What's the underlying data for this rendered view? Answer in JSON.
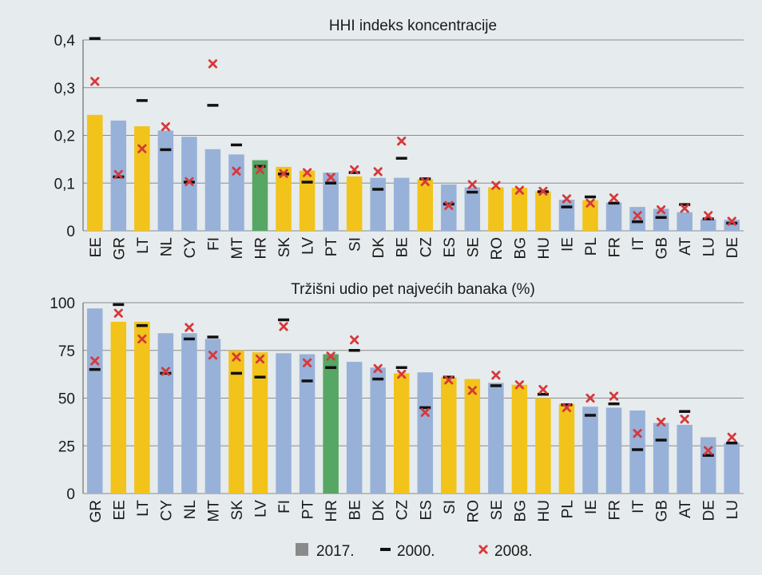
{
  "colors": {
    "background": "#e6ebed",
    "bar_blue": "#98b1d8",
    "bar_yellow": "#f2c31a",
    "bar_green": "#56a664",
    "marker_2000": "#111111",
    "marker_2008": "#d6393b",
    "legend_2017": "#8a8a8a",
    "grid": "#8c8c8c"
  },
  "legend": [
    {
      "label": "2017.",
      "symbol": "square"
    },
    {
      "label": "2000.",
      "symbol": "dash"
    },
    {
      "label": "2008.",
      "symbol": "cross"
    }
  ],
  "chart_data": [
    {
      "type": "bar",
      "title": "HHI indeks koncentracije",
      "ylim": [
        0,
        0.4
      ],
      "yticks": [
        0,
        0.1,
        0.2,
        0.3,
        0.4
      ],
      "ytick_labels": [
        "0",
        "0,1",
        "0,2",
        "0,3",
        "0,4"
      ],
      "grid": true,
      "categories": [
        "EE",
        "GR",
        "LT",
        "NL",
        "CY",
        "FI",
        "MT",
        "HR",
        "SK",
        "LV",
        "PT",
        "SI",
        "DK",
        "BE",
        "CZ",
        "ES",
        "SE",
        "RO",
        "BG",
        "HU",
        "IE",
        "PL",
        "FR",
        "IT",
        "GB",
        "AT",
        "LU",
        "DE"
      ],
      "bar_colors": [
        "yellow",
        "blue",
        "yellow",
        "blue",
        "blue",
        "blue",
        "blue",
        "green",
        "yellow",
        "yellow",
        "blue",
        "yellow",
        "blue",
        "blue",
        "yellow",
        "blue",
        "blue",
        "yellow",
        "yellow",
        "yellow",
        "blue",
        "yellow",
        "blue",
        "blue",
        "blue",
        "blue",
        "blue",
        "blue"
      ],
      "series": [
        {
          "name": "2017.",
          "kind": "bar",
          "values": [
            0.243,
            0.231,
            0.219,
            0.21,
            0.197,
            0.171,
            0.16,
            0.148,
            0.134,
            0.126,
            0.122,
            0.114,
            0.111,
            0.111,
            0.108,
            0.097,
            0.091,
            0.091,
            0.09,
            0.083,
            0.065,
            0.064,
            0.059,
            0.05,
            0.046,
            0.039,
            0.024,
            0.023
          ]
        },
        {
          "name": "2000.",
          "kind": "dash",
          "values": [
            0.403,
            0.113,
            0.273,
            0.17,
            0.102,
            0.263,
            0.18,
            0.135,
            0.119,
            0.102,
            0.1,
            0.122,
            0.087,
            0.152,
            0.109,
            0.056,
            0.081,
            null,
            null,
            0.082,
            0.05,
            0.071,
            0.058,
            0.019,
            0.028,
            0.055,
            0.025,
            0.016
          ]
        },
        {
          "name": "2008.",
          "kind": "cross",
          "values": [
            0.313,
            0.118,
            0.172,
            0.218,
            0.103,
            0.35,
            0.125,
            0.128,
            0.12,
            0.122,
            0.112,
            0.128,
            0.124,
            0.188,
            0.103,
            0.053,
            0.097,
            0.095,
            0.085,
            0.083,
            0.067,
            0.058,
            0.069,
            0.032,
            0.044,
            0.047,
            0.032,
            0.02
          ]
        }
      ]
    },
    {
      "type": "bar",
      "title": "Tržišni udio pet najvećih banaka (%)",
      "ylim": [
        0,
        100
      ],
      "yticks": [
        0,
        25,
        50,
        75,
        100
      ],
      "ytick_labels": [
        "0",
        "25",
        "50",
        "75",
        "100"
      ],
      "grid": true,
      "categories": [
        "GR",
        "EE",
        "LT",
        "CY",
        "NL",
        "MT",
        "SK",
        "LV",
        "FI",
        "PT",
        "HR",
        "BE",
        "DK",
        "CZ",
        "ES",
        "SI",
        "RO",
        "SE",
        "BG",
        "HU",
        "PL",
        "IE",
        "FR",
        "IT",
        "GB",
        "AT",
        "DE",
        "LU"
      ],
      "bar_colors": [
        "blue",
        "yellow",
        "yellow",
        "blue",
        "blue",
        "blue",
        "yellow",
        "yellow",
        "blue",
        "blue",
        "green",
        "blue",
        "blue",
        "yellow",
        "blue",
        "yellow",
        "yellow",
        "blue",
        "yellow",
        "yellow",
        "yellow",
        "blue",
        "blue",
        "blue",
        "blue",
        "blue",
        "blue",
        "blue"
      ],
      "series": [
        {
          "name": "2017.",
          "kind": "bar",
          "values": [
            97,
            90,
            90,
            84,
            84,
            81,
            75,
            74,
            73.5,
            73,
            73,
            69,
            66,
            63,
            63.5,
            61,
            60,
            58,
            57,
            50,
            47,
            45.5,
            45,
            43.5,
            37,
            36,
            29.5,
            26.5
          ]
        },
        {
          "name": "2000.",
          "kind": "dash",
          "values": [
            65,
            99,
            88,
            63,
            81,
            82,
            63,
            61,
            91,
            59,
            66,
            75,
            60,
            66,
            45,
            61,
            null,
            56.5,
            null,
            52,
            46.5,
            41,
            47,
            23,
            28,
            43,
            20,
            26.5
          ]
        },
        {
          "name": "2008.",
          "kind": "cross",
          "values": [
            69.5,
            94.5,
            81,
            64,
            87,
            72.5,
            71.5,
            70.5,
            87.5,
            68.5,
            72,
            80.5,
            65.5,
            62.5,
            42.5,
            59.5,
            54,
            62,
            57,
            54.5,
            45,
            50,
            51,
            31.5,
            37.5,
            39,
            22.5,
            29.5
          ]
        }
      ]
    }
  ]
}
